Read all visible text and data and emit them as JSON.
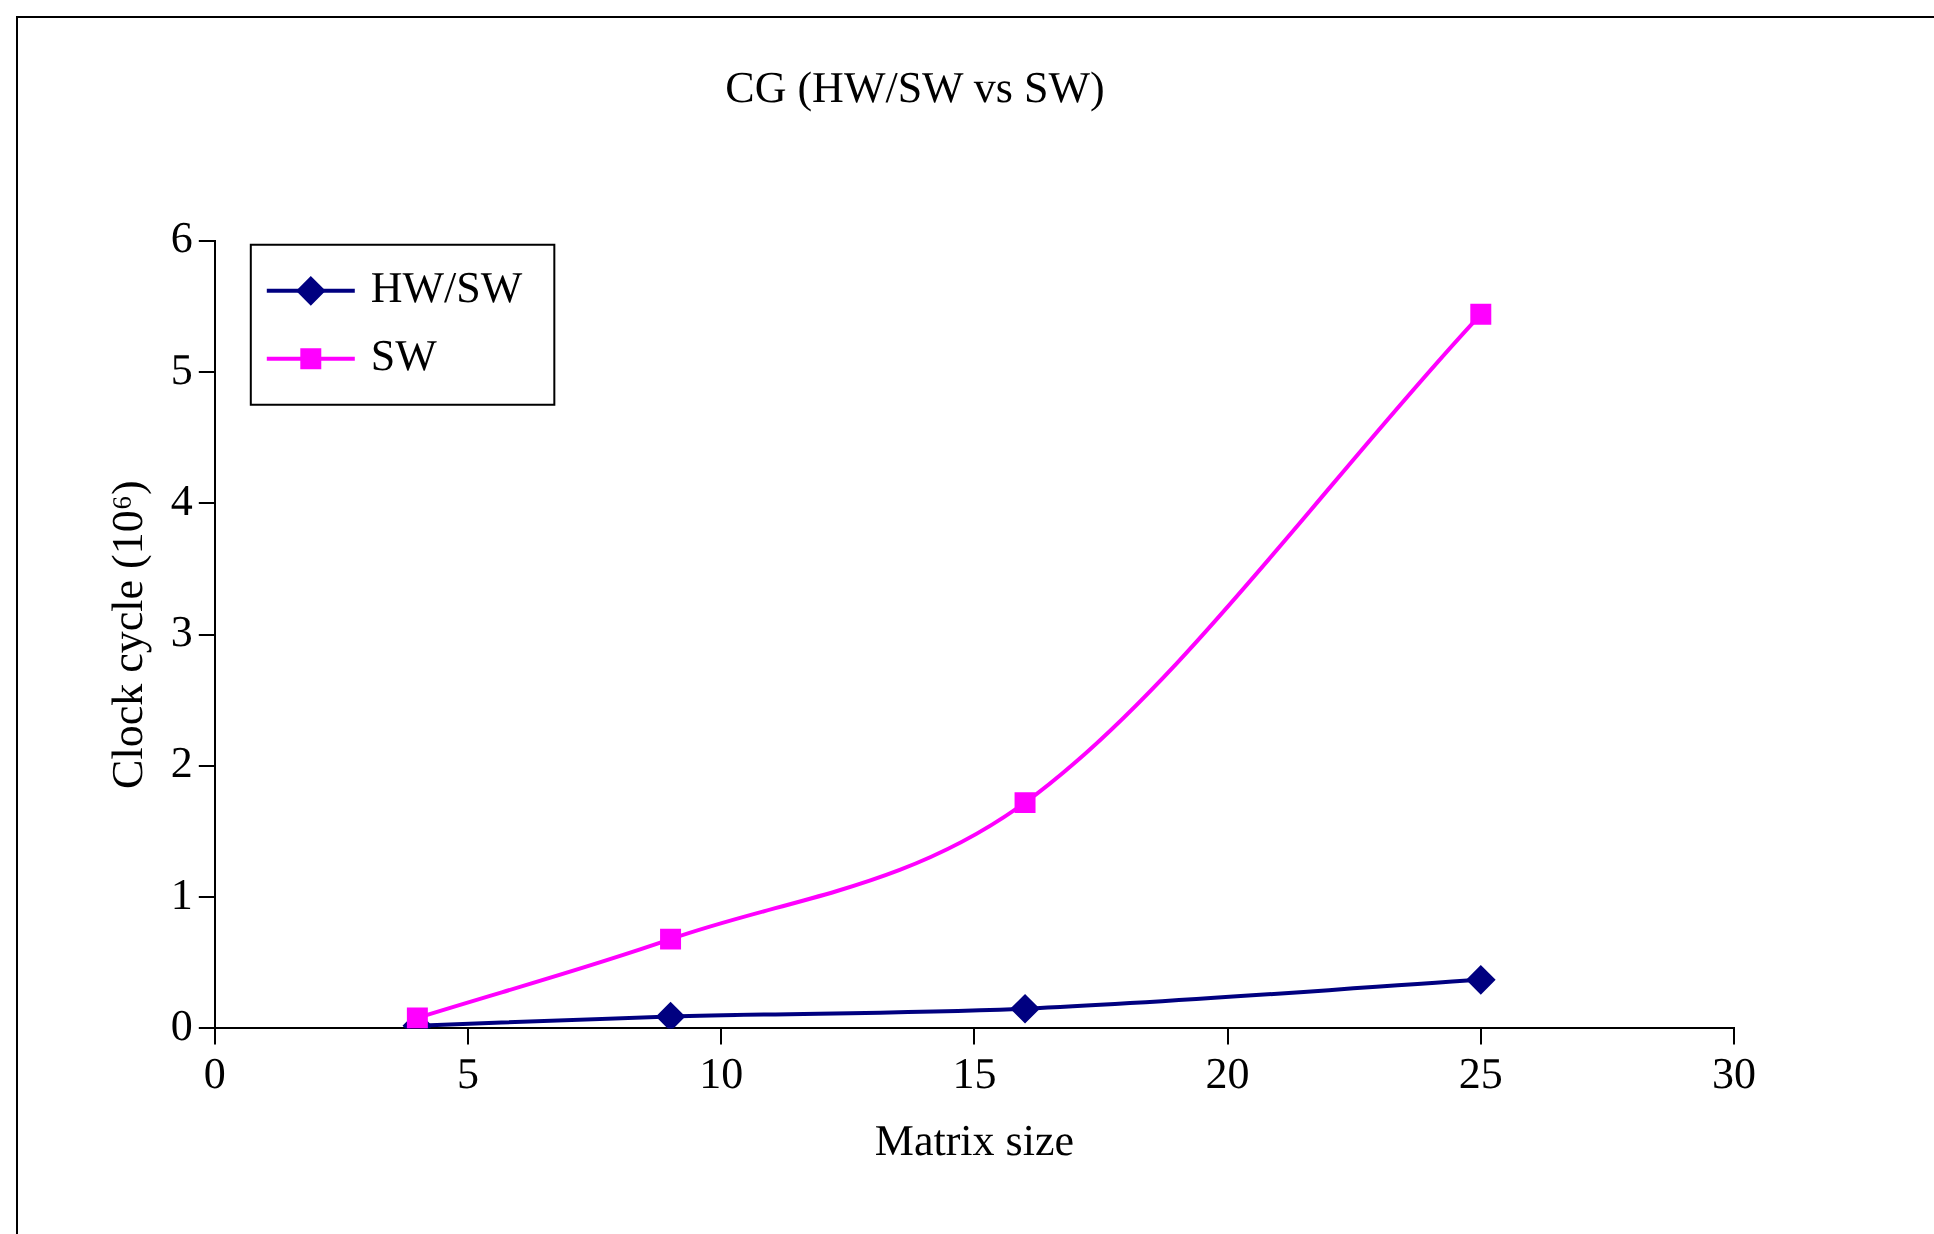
{
  "chart_data": {
    "type": "line",
    "title": "CG (HW/SW vs SW)",
    "xlabel": "Matrix size",
    "ylabel": "Clock cycle (10⁶)",
    "x": [
      4,
      9,
      16,
      25
    ],
    "series": [
      {
        "name": "HW/SW",
        "color": "#000080",
        "marker": "diamond",
        "values": [
          0.02,
          0.09,
          0.15,
          0.37
        ]
      },
      {
        "name": "SW",
        "color": "#ff00ff",
        "marker": "square",
        "values": [
          0.08,
          0.68,
          1.72,
          5.44
        ]
      }
    ],
    "xlim": [
      0,
      30
    ],
    "xticks": [
      0,
      5,
      10,
      15,
      20,
      25,
      30
    ],
    "ylim": [
      0,
      6
    ],
    "yticks": [
      0,
      1,
      2,
      3,
      4,
      5,
      6
    ],
    "grid": false,
    "legend": "top left"
  }
}
